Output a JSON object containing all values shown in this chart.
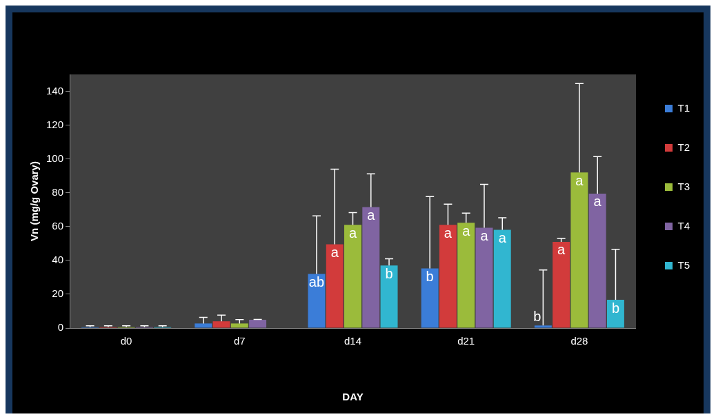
{
  "chart_data": {
    "type": "bar",
    "xlabel": "DAY",
    "ylabel": "Vn (mg/g Ovary)",
    "categories": [
      "d0",
      "d7",
      "d14",
      "d21",
      "d28"
    ],
    "ylim": [
      0,
      150
    ],
    "yticks": [
      0,
      20,
      40,
      60,
      80,
      100,
      120,
      140
    ],
    "grid": false,
    "legend": "top right",
    "series": [
      {
        "name": "T1",
        "color": "#3b7dd8",
        "values": [
          0.5,
          2.7,
          32,
          35.3,
          1.5
        ],
        "errors": [
          [
            0.5,
            1.3
          ],
          [
            2.7,
            6.3
          ],
          [
            32,
            66.3
          ],
          [
            35.3,
            77.8
          ],
          [
            1.5,
            34.3
          ]
        ],
        "value_labels": [
          null,
          null,
          "ab",
          "b",
          "b"
        ]
      },
      {
        "name": "T2",
        "color": "#d23b3b",
        "values": [
          0.5,
          4,
          49.5,
          61,
          51
        ],
        "errors": [
          [
            0.5,
            1.3
          ],
          [
            4,
            7.6
          ],
          [
            49.5,
            94
          ],
          [
            61,
            73.3
          ],
          [
            51,
            53
          ]
        ],
        "value_labels": [
          null,
          null,
          "a",
          "a",
          "a"
        ]
      },
      {
        "name": "T3",
        "color": "#9bbb3b",
        "values": [
          0.5,
          2.7,
          61,
          62.3,
          92
        ],
        "errors": [
          [
            0.5,
            1.3
          ],
          [
            2.7,
            5
          ],
          [
            61,
            68.3
          ],
          [
            62.3,
            68
          ],
          [
            92,
            144.6
          ]
        ],
        "value_labels": [
          null,
          null,
          "a",
          "a",
          "a"
        ]
      },
      {
        "name": "T4",
        "color": "#8064a2",
        "values": [
          0.5,
          4.9,
          71.5,
          59.3,
          79.5
        ],
        "errors": [
          [
            0.5,
            1.3
          ],
          [
            4.9,
            5.1
          ],
          [
            71.5,
            91.2
          ],
          [
            59.3,
            85
          ],
          [
            79.5,
            101.4
          ]
        ],
        "value_labels": [
          null,
          null,
          "a",
          "a",
          "a"
        ]
      },
      {
        "name": "T5",
        "color": "#31b6d0",
        "values": [
          0.5,
          null,
          37,
          58.1,
          16.7
        ],
        "errors": [
          [
            0.5,
            1.3
          ],
          null,
          [
            37,
            41
          ],
          [
            58.1,
            65.2
          ],
          [
            16.7,
            46.6
          ]
        ],
        "value_labels": [
          null,
          null,
          "b",
          "a",
          "b"
        ]
      }
    ]
  }
}
